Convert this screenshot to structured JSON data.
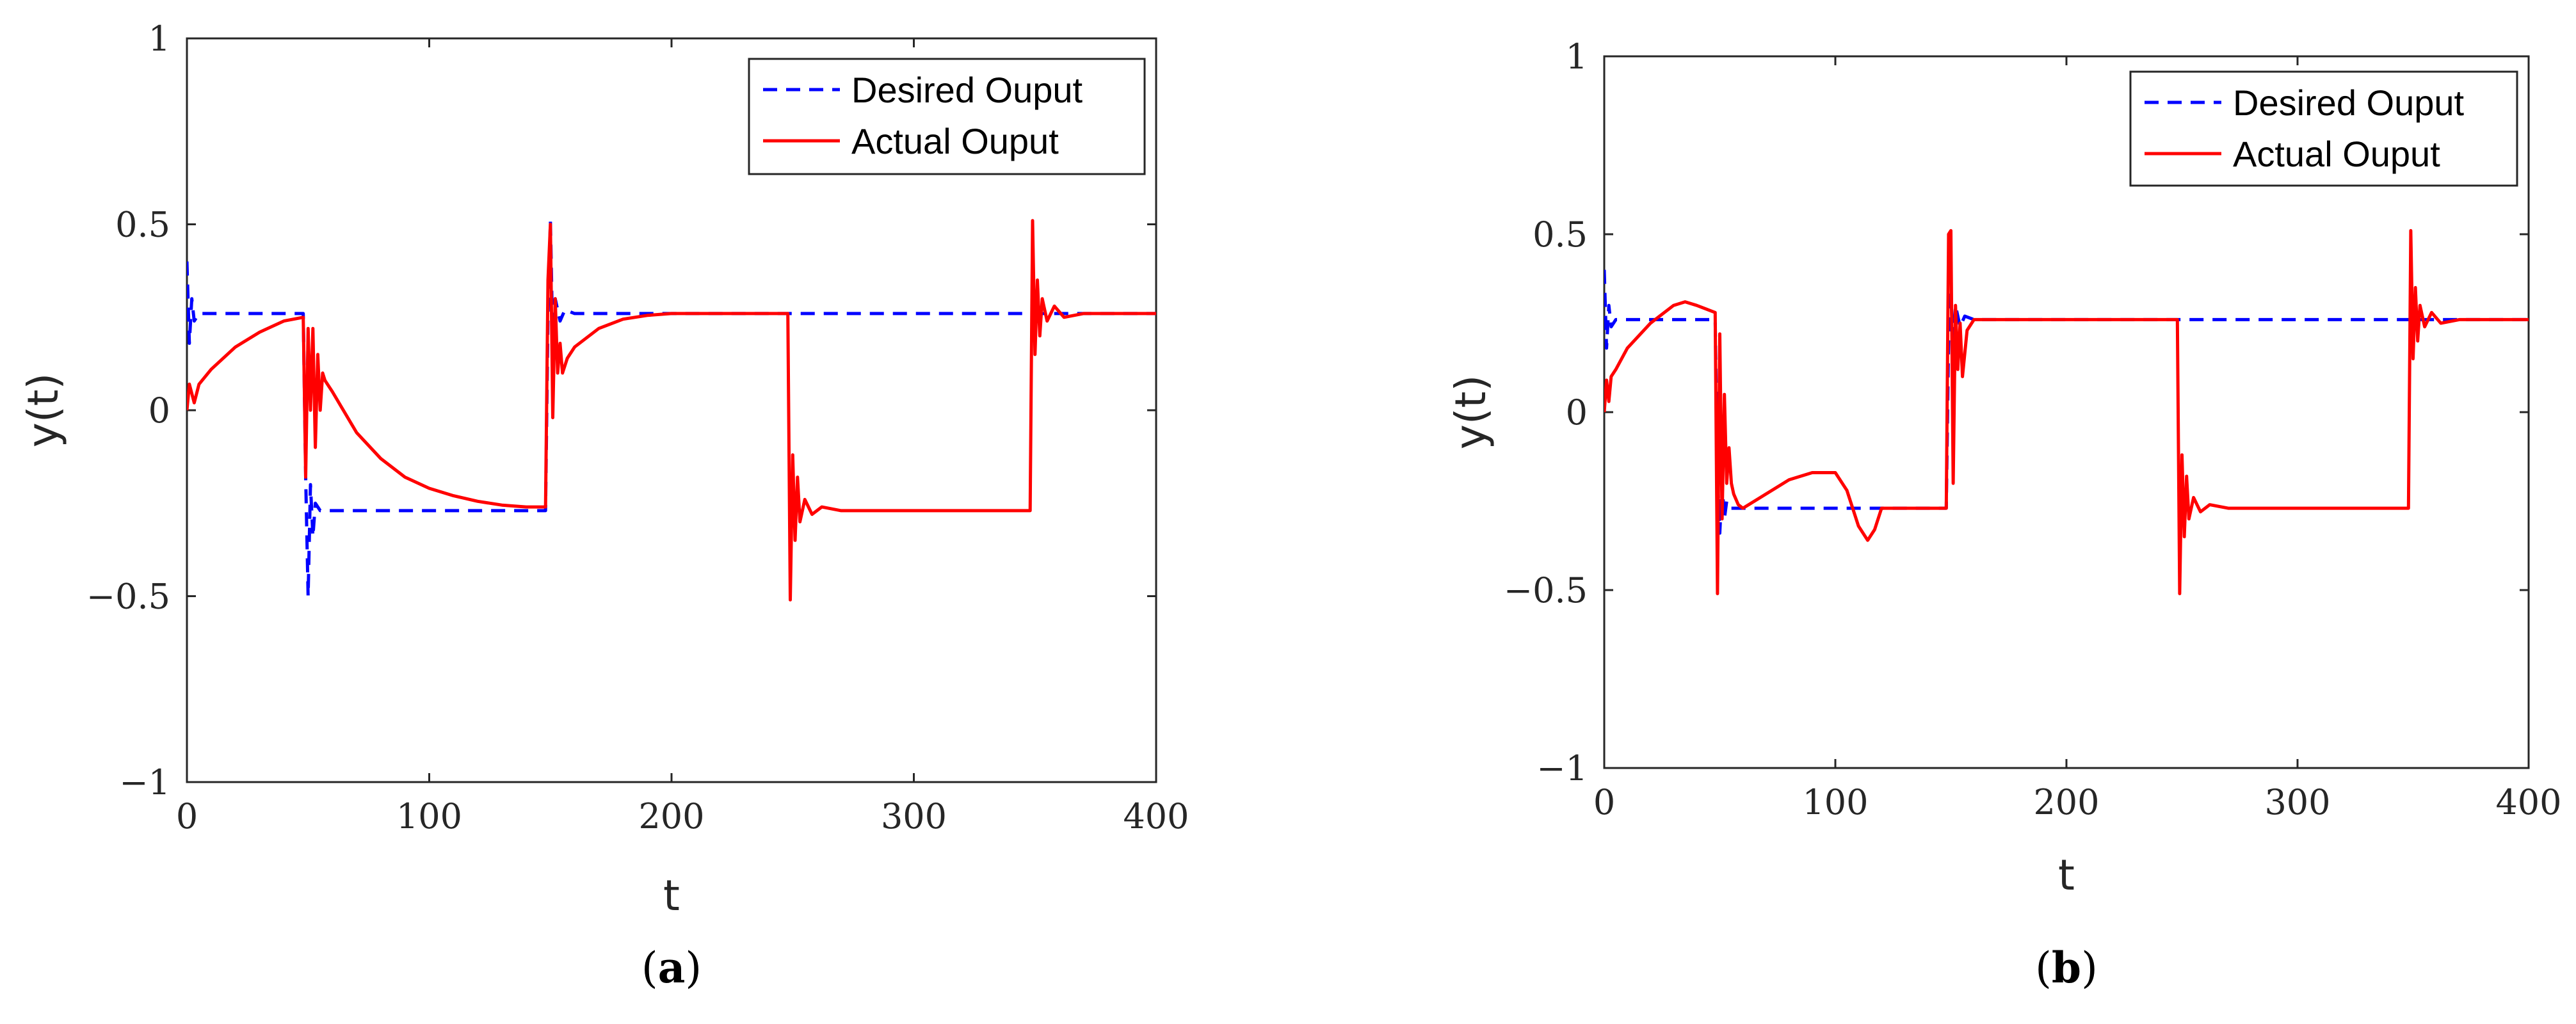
{
  "chart_data": [
    {
      "type": "line",
      "panel_label": "a",
      "xlabel": "t",
      "ylabel": "y(t)",
      "xlim": [
        0,
        400
      ],
      "ylim": [
        -1,
        1
      ],
      "xticks": [
        "0",
        "100",
        "200",
        "300",
        "400"
      ],
      "yticks": [
        "−1",
        "−0.5",
        "0",
        "0.5",
        "1"
      ],
      "grid": false,
      "legend_position": "top-right",
      "series": [
        {
          "name": "Desired Ouput",
          "style": "dashed",
          "color": "#0000ff",
          "x": [
            0,
            1,
            2,
            3,
            5,
            8,
            48,
            49,
            50,
            51,
            52,
            53,
            55,
            60,
            148,
            149,
            150,
            151,
            152,
            154,
            156,
            160,
            200,
            400
          ],
          "y": [
            0.4,
            0.18,
            0.3,
            0.24,
            0.26,
            0.26,
            0.26,
            -0.18,
            -0.5,
            -0.2,
            -0.34,
            -0.25,
            -0.27,
            -0.27,
            -0.27,
            0.25,
            0.51,
            0.18,
            0.3,
            0.24,
            0.27,
            0.26,
            0.26,
            0.26
          ]
        },
        {
          "name": "Actual Ouput",
          "style": "solid",
          "color": "#ff0000",
          "x": [
            0,
            1,
            3,
            5,
            10,
            20,
            30,
            40,
            48,
            49,
            50,
            51,
            52,
            53,
            54,
            55,
            56,
            57,
            60,
            70,
            80,
            90,
            100,
            110,
            120,
            130,
            140,
            148,
            149,
            150,
            151,
            152,
            153,
            154,
            155,
            157,
            160,
            170,
            180,
            190,
            200,
            248,
            249,
            250,
            251,
            252,
            253,
            255,
            258,
            262,
            270,
            348,
            349,
            350,
            351,
            352,
            353,
            355,
            358,
            362,
            370,
            400
          ],
          "y": [
            0.0,
            0.07,
            0.02,
            0.07,
            0.11,
            0.17,
            0.21,
            0.24,
            0.25,
            -0.18,
            0.22,
            0.0,
            0.22,
            -0.1,
            0.15,
            0.0,
            0.1,
            0.08,
            0.05,
            -0.06,
            -0.13,
            -0.18,
            -0.21,
            -0.23,
            -0.245,
            -0.255,
            -0.26,
            -0.26,
            0.35,
            0.5,
            -0.02,
            0.3,
            0.1,
            0.18,
            0.1,
            0.14,
            0.17,
            0.22,
            0.245,
            0.255,
            0.26,
            0.26,
            -0.51,
            -0.12,
            -0.35,
            -0.18,
            -0.3,
            -0.24,
            -0.28,
            -0.26,
            -0.27,
            -0.27,
            0.51,
            0.15,
            0.35,
            0.2,
            0.3,
            0.24,
            0.28,
            0.25,
            0.26,
            0.26
          ]
        }
      ]
    },
    {
      "type": "line",
      "panel_label": "b",
      "xlabel": "t",
      "ylabel": "y(t)",
      "xlim": [
        0,
        400
      ],
      "ylim": [
        -1,
        1
      ],
      "xticks": [
        "0",
        "100",
        "200",
        "300",
        "400"
      ],
      "yticks": [
        "−1",
        "−0.5",
        "0",
        "0.5",
        "1"
      ],
      "grid": false,
      "legend_position": "top-right",
      "series": [
        {
          "name": "Desired Ouput",
          "style": "dashed",
          "color": "#0000ff",
          "x": [
            0,
            1,
            2,
            3,
            5,
            8,
            48,
            49,
            50,
            51,
            52,
            53,
            55,
            60,
            148,
            149,
            150,
            151,
            152,
            154,
            156,
            160,
            200,
            400
          ],
          "y": [
            0.4,
            0.18,
            0.3,
            0.24,
            0.26,
            0.26,
            0.26,
            -0.18,
            -0.34,
            -0.2,
            -0.3,
            -0.25,
            -0.27,
            -0.27,
            -0.27,
            0.2,
            0.33,
            0.18,
            0.3,
            0.24,
            0.27,
            0.26,
            0.26,
            0.26
          ]
        },
        {
          "name": "Actual Ouput",
          "style": "solid",
          "color": "#ff0000",
          "x": [
            0,
            1,
            2,
            3,
            5,
            10,
            20,
            30,
            35,
            40,
            48,
            49,
            50,
            51,
            52,
            53,
            54,
            55,
            56,
            58,
            60,
            70,
            80,
            90,
            100,
            105,
            110,
            114,
            117,
            120,
            130,
            148,
            149,
            150,
            151,
            152,
            153,
            154,
            155,
            157,
            160,
            170,
            200,
            248,
            249,
            250,
            251,
            252,
            253,
            255,
            258,
            262,
            270,
            348,
            349,
            350,
            351,
            352,
            353,
            355,
            358,
            362,
            370,
            400
          ],
          "y": [
            0.0,
            0.09,
            0.03,
            0.1,
            0.12,
            0.18,
            0.25,
            0.3,
            0.31,
            0.3,
            0.28,
            -0.51,
            0.22,
            -0.3,
            0.05,
            -0.2,
            -0.1,
            -0.2,
            -0.23,
            -0.26,
            -0.27,
            -0.23,
            -0.19,
            -0.17,
            -0.17,
            -0.22,
            -0.32,
            -0.36,
            -0.33,
            -0.27,
            -0.27,
            -0.27,
            0.5,
            0.51,
            -0.2,
            0.3,
            0.12,
            0.25,
            0.1,
            0.23,
            0.26,
            0.26,
            0.26,
            0.26,
            -0.51,
            -0.12,
            -0.35,
            -0.18,
            -0.3,
            -0.24,
            -0.28,
            -0.26,
            -0.27,
            -0.27,
            0.51,
            0.15,
            0.35,
            0.2,
            0.3,
            0.24,
            0.28,
            0.25,
            0.26,
            0.26
          ]
        }
      ]
    }
  ]
}
